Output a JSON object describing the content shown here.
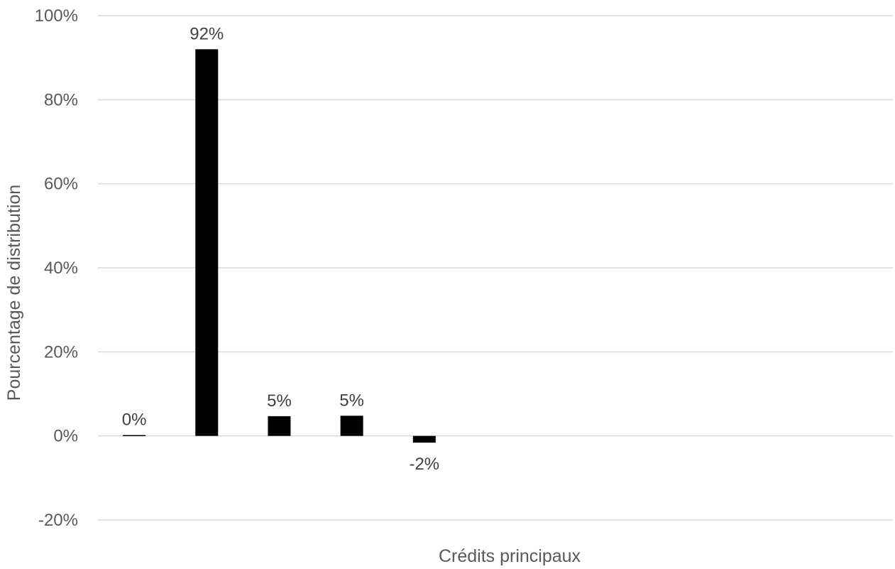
{
  "chart_data": {
    "type": "bar",
    "categories": [
      "",
      "",
      "",
      "",
      "",
      "",
      "",
      "",
      "",
      "",
      ""
    ],
    "values": [
      0.2,
      92,
      4.7,
      4.8,
      -1.6,
      0,
      0,
      0,
      0,
      0,
      0
    ],
    "data_labels": [
      "0%",
      "92%",
      "5%",
      "5%",
      "-2%",
      "",
      "",
      "",
      "",
      "",
      ""
    ],
    "title": "",
    "xlabel": "Crédits principaux",
    "ylabel": "Pourcentage de distribution",
    "ylim": [
      -20,
      100
    ],
    "yticks": [
      -20,
      0,
      20,
      40,
      60,
      80,
      100
    ],
    "ytick_labels": [
      "-20%",
      "0%",
      "20%",
      "40%",
      "60%",
      "80%",
      "100%"
    ],
    "grid": true,
    "legend": "none",
    "bar_color": "#000000"
  }
}
